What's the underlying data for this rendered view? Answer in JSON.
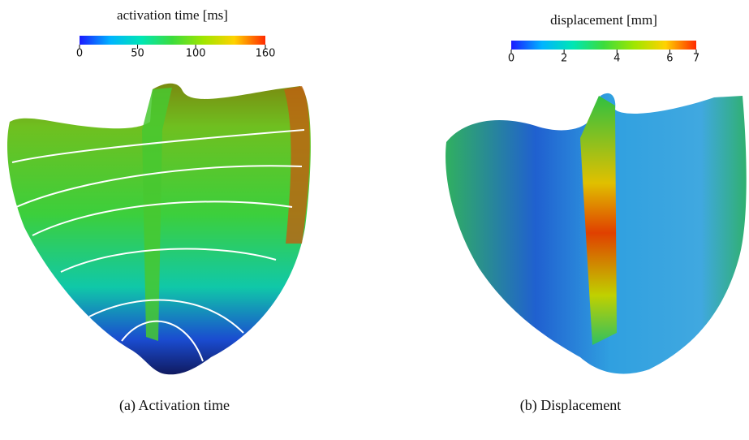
{
  "panels": [
    {
      "colorbar": {
        "title": "activation time [ms]",
        "range": [
          0,
          160
        ],
        "ticks": [
          0,
          50,
          100,
          160
        ],
        "colors": [
          "#1a1aff",
          "#00b4ff",
          "#00e6b4",
          "#3cdc3c",
          "#a0e600",
          "#ffd200",
          "#ff2a00"
        ]
      },
      "caption": "(a) Activation time"
    },
    {
      "colorbar": {
        "title": "displacement [mm]",
        "range": [
          0,
          7
        ],
        "ticks": [
          0,
          2,
          4,
          6,
          7
        ],
        "colors": [
          "#1a1aff",
          "#00b4ff",
          "#00e6b4",
          "#3cdc3c",
          "#a0e600",
          "#ffd200",
          "#ff2a00"
        ]
      },
      "caption": "(b) Displacement"
    }
  ]
}
